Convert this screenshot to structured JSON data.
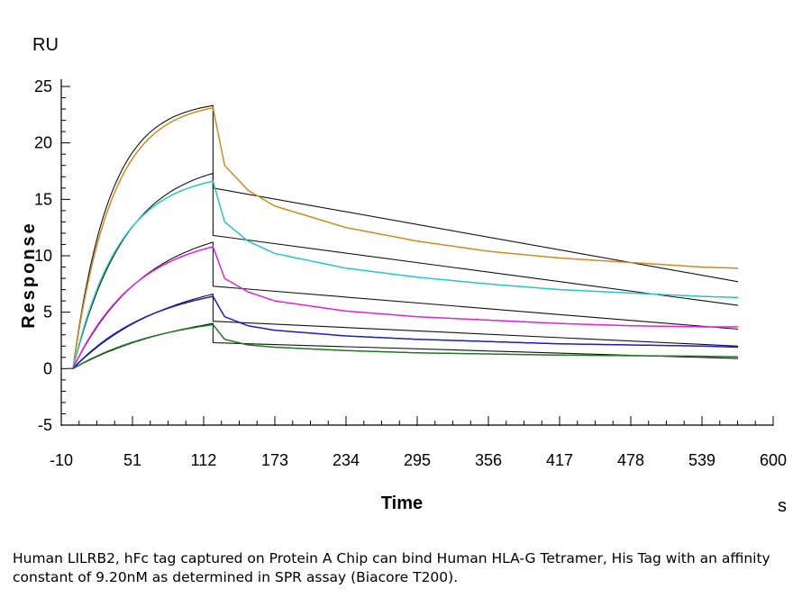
{
  "chart_data": {
    "type": "line",
    "unit_y": "RU",
    "unit_x": "s",
    "xlabel": "Time",
    "ylabel": "Response",
    "xlim": [
      -10,
      600
    ],
    "ylim": [
      -5,
      25
    ],
    "x_ticks": [
      -10,
      51,
      112,
      173,
      234,
      295,
      356,
      417,
      478,
      539,
      600
    ],
    "y_ticks": [
      -5,
      0,
      5,
      10,
      15,
      20,
      25
    ],
    "grid": false,
    "legend": "none",
    "association_start": 0,
    "dissociation_start": 120,
    "end": 570,
    "series": [
      {
        "color": "#D08A1E",
        "assoc_end": 23.1,
        "kobs": 0.03,
        "diss_values": [
          [
            120,
            23.1
          ],
          [
            130,
            18.0
          ],
          [
            150,
            15.8
          ],
          [
            173,
            14.4
          ],
          [
            234,
            12.5
          ],
          [
            295,
            11.3
          ],
          [
            356,
            10.4
          ],
          [
            417,
            9.8
          ],
          [
            478,
            9.4
          ],
          [
            539,
            9.0
          ],
          [
            570,
            8.9
          ]
        ]
      },
      {
        "color": "#22C8C8",
        "assoc_end": 16.6,
        "kobs": 0.025,
        "diss_values": [
          [
            120,
            16.6
          ],
          [
            130,
            13.0
          ],
          [
            150,
            11.3
          ],
          [
            173,
            10.2
          ],
          [
            234,
            8.9
          ],
          [
            295,
            8.1
          ],
          [
            356,
            7.5
          ],
          [
            417,
            7.0
          ],
          [
            478,
            6.7
          ],
          [
            539,
            6.4
          ],
          [
            570,
            6.3
          ]
        ]
      },
      {
        "color": "#E020E0",
        "assoc_end": 10.8,
        "kobs": 0.018,
        "diss_values": [
          [
            120,
            10.8
          ],
          [
            130,
            8.0
          ],
          [
            150,
            6.8
          ],
          [
            173,
            6.0
          ],
          [
            234,
            5.1
          ],
          [
            295,
            4.6
          ],
          [
            356,
            4.3
          ],
          [
            417,
            4.0
          ],
          [
            478,
            3.8
          ],
          [
            539,
            3.7
          ],
          [
            570,
            3.7
          ]
        ]
      },
      {
        "color": "#1A1AD0",
        "assoc_end": 6.4,
        "kobs": 0.014,
        "diss_values": [
          [
            120,
            6.4
          ],
          [
            130,
            4.6
          ],
          [
            150,
            3.8
          ],
          [
            173,
            3.4
          ],
          [
            234,
            2.9
          ],
          [
            295,
            2.6
          ],
          [
            356,
            2.4
          ],
          [
            417,
            2.2
          ],
          [
            478,
            2.1
          ],
          [
            539,
            2.0
          ],
          [
            570,
            1.9
          ]
        ]
      },
      {
        "color": "#1E7A1E",
        "assoc_end": 3.9,
        "kobs": 0.012,
        "diss_values": [
          [
            120,
            3.9
          ],
          [
            130,
            2.6
          ],
          [
            150,
            2.1
          ],
          [
            173,
            1.9
          ],
          [
            234,
            1.6
          ],
          [
            295,
            1.4
          ],
          [
            356,
            1.3
          ],
          [
            417,
            1.2
          ],
          [
            478,
            1.15
          ],
          [
            539,
            1.1
          ],
          [
            570,
            1.05
          ]
        ]
      }
    ],
    "fits": [
      {
        "assoc_end": 23.3,
        "kobs": 0.032,
        "diss_start": 16.0,
        "diss_end": 7.7
      },
      {
        "assoc_end": 17.3,
        "kobs": 0.022,
        "diss_start": 11.8,
        "diss_end": 5.6
      },
      {
        "assoc_end": 11.2,
        "kobs": 0.016,
        "diss_start": 7.3,
        "diss_end": 3.5
      },
      {
        "assoc_end": 6.6,
        "kobs": 0.012,
        "diss_start": 4.2,
        "diss_end": 2.0
      },
      {
        "assoc_end": 4.0,
        "kobs": 0.01,
        "diss_start": 2.3,
        "diss_end": 0.9
      }
    ]
  },
  "caption": "Human LILRB2, hFc tag captured on Protein A Chip can bind Human HLA-G Tetramer, His Tag with an affinity constant of 9.20nM as determined in SPR assay (Biacore T200)."
}
